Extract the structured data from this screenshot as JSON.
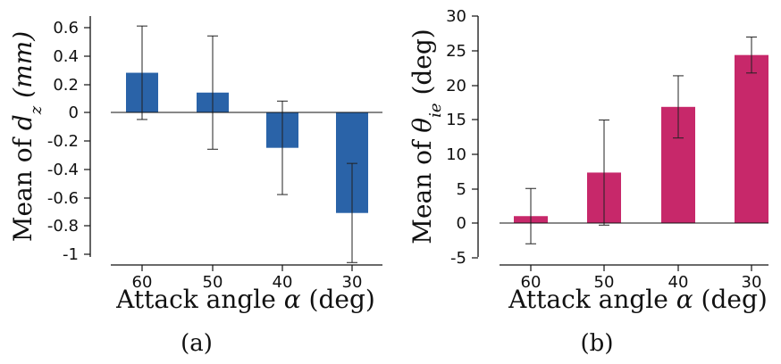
{
  "colors": {
    "panel_a_bar": "#2a63a8",
    "panel_b_bar": "#c7286a",
    "axis": "#111111"
  },
  "chart_data": [
    {
      "type": "bar",
      "panel": "a",
      "caption": "(a)",
      "categories": [
        "60",
        "50",
        "40",
        "30"
      ],
      "values": [
        0.28,
        0.14,
        -0.25,
        -0.71
      ],
      "errors": [
        0.33,
        0.4,
        0.33,
        0.35
      ],
      "xlabel_text": "Attack angle ",
      "xlabel_symbol": "α",
      "xlabel_unit": " (deg)",
      "ylabel_text": "Mean of ",
      "ylabel_symbol": "d",
      "ylabel_subscript": "z",
      "ylabel_unit": " (mm)",
      "yticks": [
        "0.6",
        "0.4",
        "0.2",
        "0",
        "-0.2",
        "-0.4",
        "-0.6",
        "-0.8",
        "-1"
      ],
      "ylim": [
        -1.05,
        0.62
      ],
      "grid": false
    },
    {
      "type": "bar",
      "panel": "b",
      "caption": "(b)",
      "categories": [
        "60",
        "50",
        "40",
        "30"
      ],
      "values": [
        1,
        7.3,
        16.8,
        24.3
      ],
      "errors": [
        4,
        7.6,
        4.5,
        2.6
      ],
      "xlabel_text": "Attack angle ",
      "xlabel_symbol": "α",
      "xlabel_unit": " (deg)",
      "ylabel_text": "Mean of ",
      "ylabel_symbol": "θ",
      "ylabel_subscript": "ie",
      "ylabel_unit": " (deg)",
      "yticks": [
        "30",
        "25",
        "20",
        "15",
        "10",
        "5",
        "0",
        "-5"
      ],
      "ylim": [
        -5,
        30
      ],
      "grid": false
    }
  ]
}
